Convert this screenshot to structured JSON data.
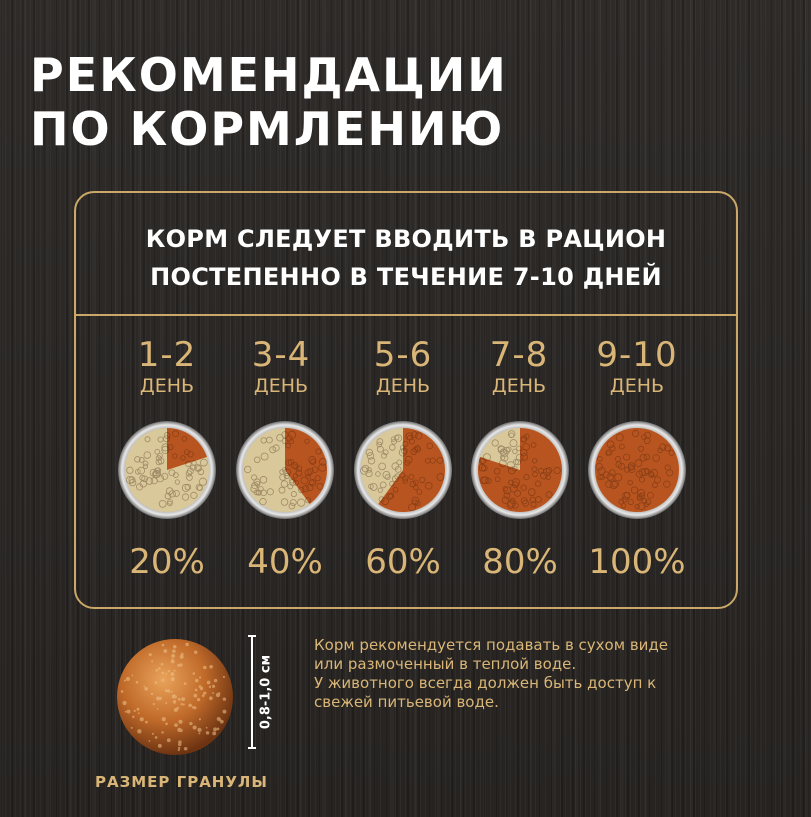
{
  "title": {
    "line1": "РЕКОМЕНДАЦИИ",
    "line2": "ПО КОРМЛЕНИЮ"
  },
  "headline": {
    "line1": "КОРМ СЛЕДУЕТ ВВОДИТЬ В РАЦИОН",
    "line2": "ПОСТЕПЕННО В ТЕЧЕНИЕ 7-10 ДНЕЙ"
  },
  "schedule": [
    {
      "days": "1-2",
      "label": "ДЕНЬ",
      "percent": "20%",
      "fraction": 0.2
    },
    {
      "days": "3-4",
      "label": "ДЕНЬ",
      "percent": "40%",
      "fraction": 0.4
    },
    {
      "days": "5-6",
      "label": "ДЕНЬ",
      "percent": "60%",
      "fraction": 0.6
    },
    {
      "days": "7-8",
      "label": "ДЕНЬ",
      "percent": "80%",
      "fraction": 0.8
    },
    {
      "days": "9-10",
      "label": "ДЕНЬ",
      "percent": "100%",
      "fraction": 1.0
    }
  ],
  "granule": {
    "size": "0,8-1,0 см",
    "caption": "РАЗМЕР ГРАНУЛЫ"
  },
  "note": {
    "line1": "Корм рекомендуется подавать в сухом виде",
    "line2": "или размоченный в теплой воде.",
    "line3": "У животного всегда должен быть доступ к",
    "line4": "свежей питьевой воде."
  },
  "colors": {
    "accent": "#d9b677",
    "frame": "#c9a868",
    "new_food": "#b8541f",
    "old_food": "#d8c89a"
  }
}
